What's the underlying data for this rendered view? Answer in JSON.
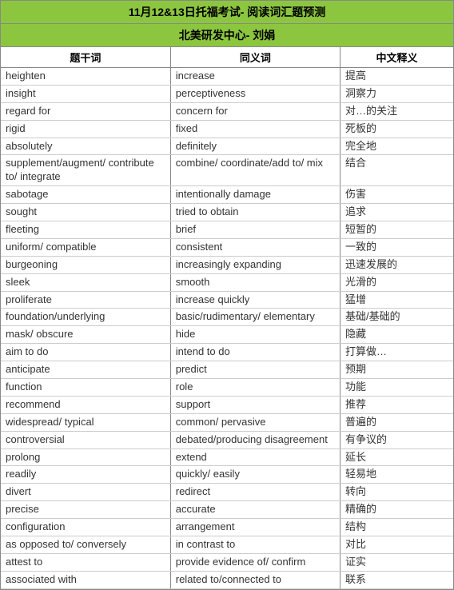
{
  "header": {
    "line1": "11月12&13日托福考试- 阅读词汇题预测",
    "line2": "北美研发中心- 刘娟"
  },
  "columns": [
    "题干词",
    "同义词",
    "中文释义"
  ],
  "rows": [
    [
      "heighten",
      "increase",
      "提高"
    ],
    [
      "insight",
      "perceptiveness",
      "洞察力"
    ],
    [
      "regard for",
      "concern for",
      "对…的关注"
    ],
    [
      "rigid",
      "fixed",
      "死板的"
    ],
    [
      "absolutely",
      "definitely",
      "完全地"
    ],
    [
      "supplement/augment/ contribute to/ integrate",
      "combine/ coordinate/add to/ mix",
      "结合"
    ],
    [
      "sabotage",
      "intentionally damage",
      "伤害"
    ],
    [
      "sought",
      "tried to obtain",
      "追求"
    ],
    [
      "fleeting",
      "brief",
      "短暂的"
    ],
    [
      "uniform/ compatible",
      "consistent",
      "一致的"
    ],
    [
      "burgeoning",
      "increasingly expanding",
      "迅速发展的"
    ],
    [
      "sleek",
      "smooth",
      "光滑的"
    ],
    [
      "proliferate",
      "increase quickly",
      "猛增"
    ],
    [
      "foundation/underlying",
      "basic/rudimentary/ elementary",
      "基础/基础的"
    ],
    [
      "mask/ obscure",
      "hide",
      "隐藏"
    ],
    [
      "aim to do",
      "intend to do",
      "打算做…"
    ],
    [
      "anticipate",
      "predict",
      "预期"
    ],
    [
      "function",
      "role",
      "功能"
    ],
    [
      "recommend",
      "support",
      "推荐"
    ],
    [
      "widespread/ typical",
      "common/ pervasive",
      "普遍的"
    ],
    [
      "controversial",
      "debated/producing disagreement",
      "有争议的"
    ],
    [
      "prolong",
      "extend",
      "延长"
    ],
    [
      "readily",
      "quickly/ easily",
      "轻易地"
    ],
    [
      "divert",
      "redirect",
      "转向"
    ],
    [
      "precise",
      "accurate",
      "精确的"
    ],
    [
      "configuration",
      "arrangement",
      "结构"
    ],
    [
      "as opposed to/ conversely",
      "in contrast to",
      "对比"
    ],
    [
      "attest to",
      "provide evidence of/ confirm",
      "证实"
    ],
    [
      "associated with",
      "related to/connected to",
      "联系"
    ]
  ]
}
